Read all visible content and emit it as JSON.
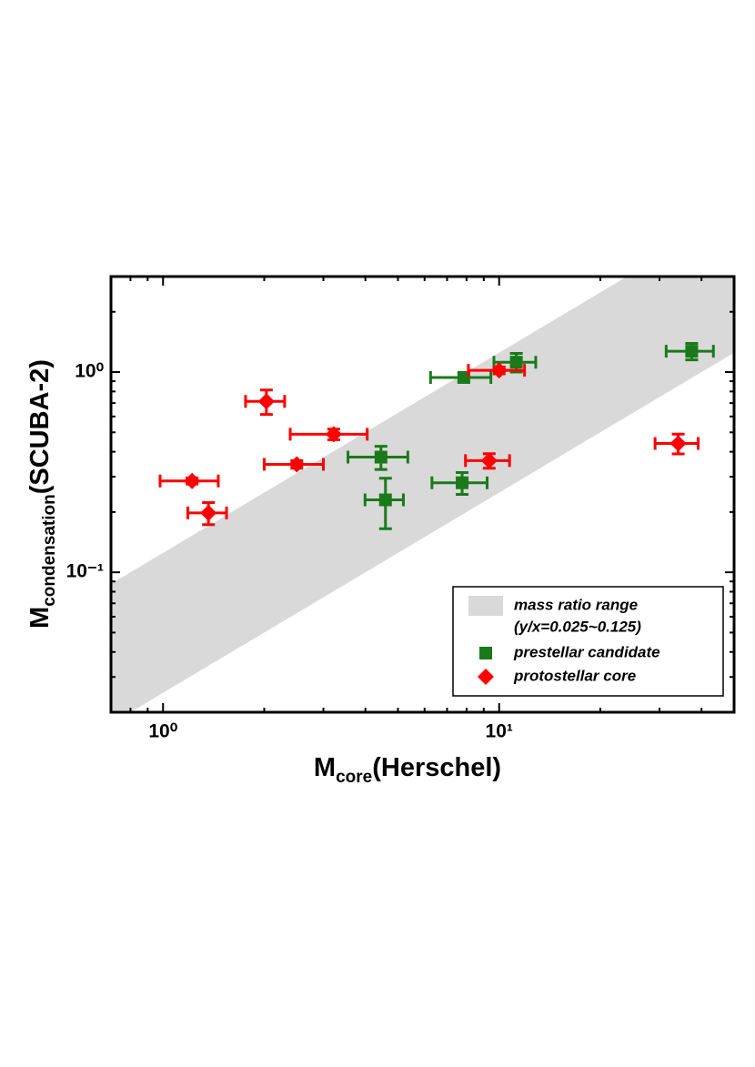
{
  "chart_data": {
    "type": "scatter",
    "x_label": {
      "main": "M",
      "sub": "core",
      "rest": "(Herschel)"
    },
    "y_label": {
      "main": "M",
      "sub": "condensation",
      "rest": "(SCUBA-2)"
    },
    "xscale": "log",
    "yscale": "log",
    "xlim": [
      0.7,
      50
    ],
    "ylim": [
      0.02,
      3
    ],
    "xticks": [
      {
        "value": 1,
        "label": "10⁰"
      },
      {
        "value": 10,
        "label": "10¹"
      }
    ],
    "yticks": [
      {
        "value": 0.1,
        "label": "10⁻¹"
      },
      {
        "value": 1,
        "label": "10⁰"
      }
    ],
    "grid": false,
    "legend": "lower right",
    "band": {
      "ratios": [
        0.025,
        0.125
      ],
      "name": "mass ratio range",
      "note": "(y/x=0.025~0.125)",
      "color": "#d9d9d9"
    },
    "series": [
      {
        "name": "prestellar candidate",
        "color": "#1a7a1a",
        "marker": "square",
        "x": [
          7.85,
          11.25,
          37.4,
          4.45,
          4.59,
          7.76
        ],
        "values": [
          0.94,
          1.12,
          1.27,
          0.376,
          0.23,
          0.28
        ],
        "xerr": [
          1.6,
          1.6,
          6,
          0.9,
          0.6,
          1.45
        ],
        "yerr": [
          0.05,
          0.12,
          0.12,
          0.05,
          0.065,
          0.035
        ]
      },
      {
        "name": "protostellar core",
        "color": "#ff0000",
        "marker": "diamond",
        "x": [
          1.22,
          1.365,
          2.03,
          2.5,
          3.22,
          10,
          9.34,
          34.1
        ],
        "values": [
          0.286,
          0.198,
          0.714,
          0.346,
          0.489,
          1.02,
          0.361,
          0.44
        ],
        "xerr": [
          0.24,
          0.18,
          0.27,
          0.5,
          0.83,
          1.9,
          1.4,
          5
        ],
        "yerr": [
          0.01,
          0.025,
          0.1,
          0.015,
          0.03,
          0.04,
          0.03,
          0.05
        ]
      }
    ]
  }
}
